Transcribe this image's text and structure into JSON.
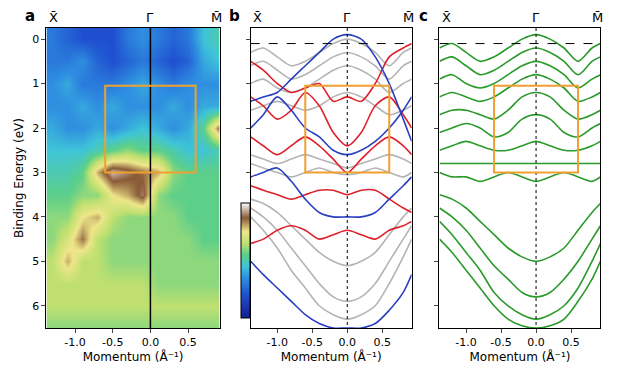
{
  "chart_data": [
    {
      "type": "heatmap",
      "panel": "a",
      "xlabel": "Momentum (Å⁻¹)",
      "ylabel": "Binding Energy (eV)",
      "xlim": [
        -1.38,
        0.92
      ],
      "ylim": [
        -0.25,
        6.5
      ],
      "xticks": [
        {
          "value": -1.0,
          "label": "-1.0"
        },
        -0.5,
        {
          "value": 0,
          "label": "0.0"
        },
        0.5
      ],
      "yticks": [
        0,
        1,
        2,
        3,
        4,
        5,
        6
      ],
      "symmetry_points": [
        {
          "value": -1.28,
          "label": "X̄"
        },
        {
          "value": 0,
          "label": "Γ̄"
        },
        {
          "value": 0.88,
          "label": "M̄"
        }
      ],
      "vlines": [
        0
      ],
      "box": {
        "x": [
          -0.6,
          0.6
        ],
        "y": [
          1.05,
          3.0
        ],
        "color": "#f0a030"
      },
      "zlim": [
        0,
        1
      ],
      "x": [
        -1.3,
        -1.1,
        -0.9,
        -0.7,
        -0.5,
        -0.3,
        -0.1,
        0.1,
        0.3,
        0.5,
        0.7,
        0.9
      ],
      "y": [
        0,
        0.5,
        1.0,
        1.5,
        2.0,
        2.5,
        3.0,
        3.5,
        4.0,
        4.5,
        5.0,
        5.5,
        6.0,
        6.5
      ],
      "z": [
        [
          0.3,
          0.25,
          0.2,
          0.2,
          0.2,
          0.3,
          0.35,
          0.3,
          0.25,
          0.3,
          0.45,
          0.5
        ],
        [
          0.3,
          0.3,
          0.35,
          0.25,
          0.2,
          0.25,
          0.3,
          0.25,
          0.2,
          0.25,
          0.4,
          0.45
        ],
        [
          0.35,
          0.4,
          0.3,
          0.3,
          0.3,
          0.35,
          0.4,
          0.35,
          0.3,
          0.35,
          0.35,
          0.35
        ],
        [
          0.35,
          0.35,
          0.4,
          0.35,
          0.4,
          0.35,
          0.35,
          0.35,
          0.4,
          0.35,
          0.4,
          0.4
        ],
        [
          0.4,
          0.35,
          0.35,
          0.4,
          0.35,
          0.4,
          0.45,
          0.4,
          0.35,
          0.4,
          0.55,
          0.85
        ],
        [
          0.45,
          0.45,
          0.45,
          0.5,
          0.55,
          0.6,
          0.55,
          0.55,
          0.5,
          0.45,
          0.45,
          0.5
        ],
        [
          0.5,
          0.5,
          0.55,
          0.8,
          0.95,
          0.9,
          0.85,
          0.8,
          0.6,
          0.55,
          0.55,
          0.55
        ],
        [
          0.55,
          0.55,
          0.6,
          0.6,
          0.75,
          0.8,
          0.9,
          0.6,
          0.55,
          0.55,
          0.55,
          0.55
        ],
        [
          0.6,
          0.6,
          0.75,
          0.8,
          0.65,
          0.6,
          0.6,
          0.6,
          0.6,
          0.55,
          0.55,
          0.55
        ],
        [
          0.6,
          0.7,
          0.85,
          0.65,
          0.6,
          0.6,
          0.6,
          0.6,
          0.6,
          0.6,
          0.55,
          0.55
        ],
        [
          0.65,
          0.8,
          0.65,
          0.65,
          0.6,
          0.6,
          0.6,
          0.6,
          0.6,
          0.6,
          0.6,
          0.6
        ],
        [
          0.65,
          0.65,
          0.65,
          0.65,
          0.65,
          0.65,
          0.65,
          0.6,
          0.6,
          0.6,
          0.6,
          0.6
        ],
        [
          0.65,
          0.65,
          0.65,
          0.65,
          0.65,
          0.65,
          0.65,
          0.65,
          0.65,
          0.65,
          0.65,
          0.65
        ],
        [
          0.6,
          0.6,
          0.6,
          0.6,
          0.6,
          0.6,
          0.6,
          0.6,
          0.6,
          0.6,
          0.6,
          0.6
        ]
      ]
    },
    {
      "type": "line",
      "panel": "b",
      "tick_labels": "x",
      "xlabel": "Momentum (Å⁻¹)",
      "xlim": [
        -1.38,
        0.92
      ],
      "ylim": [
        -0.25,
        6.5
      ],
      "xticks": [
        {
          "value": -1.0,
          "label": "-1.0"
        },
        -0.5,
        {
          "value": 0,
          "label": "0.0"
        },
        0.5
      ],
      "yticks": [
        0,
        1,
        2,
        3,
        4,
        5,
        6
      ],
      "symmetry_points": [
        {
          "value": -1.28,
          "label": "X̄"
        },
        {
          "value": 0,
          "label": "Γ̄"
        },
        {
          "value": 0.88,
          "label": "M̄"
        }
      ],
      "vlines": [
        0
      ],
      "hlines": [
        0.1
      ],
      "box": {
        "x": [
          -0.6,
          0.6
        ],
        "y": [
          1.05,
          3.0
        ],
        "color": "#f0a030"
      },
      "x": [
        -1.38,
        -1.2,
        -1.0,
        -0.8,
        -0.6,
        -0.4,
        -0.2,
        0,
        0.2,
        0.4,
        0.6,
        0.8,
        0.92
      ],
      "series": [
        {
          "color": "#b4b4b4",
          "values": [
            0.3,
            0.2,
            0.4,
            0.6,
            0.5,
            0.3,
            0.1,
            0.0,
            0.1,
            0.3,
            0.6,
            0.3,
            0.2
          ]
        },
        {
          "color": "#b4b4b4",
          "values": [
            0.6,
            0.5,
            0.7,
            0.9,
            0.8,
            0.6,
            0.4,
            0.3,
            0.4,
            0.6,
            0.9,
            0.6,
            0.5
          ]
        },
        {
          "color": "#b4b4b4",
          "values": [
            1.0,
            0.9,
            1.1,
            1.2,
            1.1,
            0.9,
            0.7,
            0.6,
            0.7,
            0.9,
            1.2,
            1.0,
            0.9
          ]
        },
        {
          "color": "#b4b4b4",
          "values": [
            1.6,
            1.5,
            1.4,
            1.5,
            1.6,
            1.5,
            1.3,
            1.2,
            1.3,
            1.5,
            1.7,
            1.6,
            1.5
          ]
        },
        {
          "color": "#b4b4b4",
          "values": [
            2.6,
            2.7,
            2.8,
            2.7,
            2.6,
            2.7,
            2.8,
            2.9,
            2.8,
            2.7,
            2.6,
            2.7,
            2.8
          ]
        },
        {
          "color": "#b4b4b4",
          "values": [
            2.8,
            2.9,
            3.0,
            3.1,
            3.0,
            2.9,
            3.0,
            3.05,
            3.0,
            2.9,
            3.0,
            3.1,
            3.0
          ]
        },
        {
          "color": "#b4b4b4",
          "values": [
            3.6,
            3.7,
            3.9,
            4.2,
            4.5,
            4.8,
            5.0,
            5.1,
            5.0,
            4.8,
            4.4,
            4.0,
            3.8
          ]
        },
        {
          "color": "#b4b4b4",
          "values": [
            3.8,
            4.0,
            4.3,
            4.7,
            5.1,
            5.5,
            5.8,
            5.9,
            5.8,
            5.5,
            5.0,
            4.5,
            4.2
          ]
        },
        {
          "color": "#b4b4b4",
          "values": [
            4.0,
            4.3,
            4.7,
            5.2,
            5.6,
            6.0,
            6.2,
            6.3,
            6.2,
            6.0,
            5.5,
            4.9,
            4.5
          ]
        },
        {
          "color": "#e0202a",
          "values": [
            0.5,
            0.7,
            1.0,
            1.2,
            1.1,
            1.0,
            1.4,
            1.3,
            1.4,
            1.0,
            0.4,
            0.2,
            0.1
          ]
        },
        {
          "color": "#e0202a",
          "values": [
            1.3,
            1.5,
            1.8,
            1.6,
            1.2,
            1.5,
            2.1,
            2.4,
            2.1,
            1.5,
            1.3,
            1.7,
            2.0
          ]
        },
        {
          "color": "#e0202a",
          "values": [
            2.2,
            2.4,
            2.6,
            2.4,
            2.2,
            2.4,
            2.7,
            3.0,
            2.7,
            2.4,
            2.2,
            2.4,
            2.6
          ]
        },
        {
          "color": "#e0202a",
          "values": [
            3.3,
            3.4,
            3.5,
            3.6,
            3.5,
            3.4,
            3.4,
            3.5,
            3.4,
            3.4,
            3.6,
            3.8,
            3.9
          ]
        },
        {
          "color": "#e0202a",
          "values": [
            4.6,
            4.5,
            4.3,
            4.2,
            4.3,
            4.5,
            4.4,
            4.3,
            4.4,
            4.5,
            4.3,
            4.2,
            4.1
          ]
        },
        {
          "color": "#2a40c0",
          "values": [
            1.4,
            1.3,
            1.2,
            0.9,
            0.6,
            0.3,
            0.0,
            -0.1,
            0.0,
            0.4,
            1.0,
            1.8,
            2.3
          ]
        },
        {
          "color": "#2a40c0",
          "values": [
            2.0,
            1.7,
            1.3,
            1.6,
            2.0,
            2.2,
            2.5,
            2.6,
            2.5,
            2.3,
            2.0,
            1.6,
            1.3
          ]
        },
        {
          "color": "#2a40c0",
          "values": [
            3.1,
            3.0,
            2.9,
            3.2,
            3.6,
            3.9,
            4.0,
            4.0,
            4.0,
            3.9,
            3.6,
            3.3,
            3.1
          ]
        },
        {
          "color": "#2a40c0",
          "values": [
            5.0,
            5.3,
            5.6,
            5.9,
            6.2,
            6.4,
            6.5,
            6.5,
            6.5,
            6.4,
            6.1,
            5.7,
            5.3
          ]
        }
      ]
    },
    {
      "type": "line",
      "panel": "c",
      "tick_labels": "x",
      "xlabel": "Momentum (Å⁻¹)",
      "xlim": [
        -1.38,
        0.92
      ],
      "ylim": [
        -0.25,
        6.5
      ],
      "xticks": [
        {
          "value": -1.0,
          "label": "-1.0"
        },
        -0.5,
        {
          "value": 0,
          "label": "0.0"
        },
        0.5
      ],
      "yticks": [
        0,
        1,
        2,
        3,
        4,
        5,
        6
      ],
      "symmetry_points": [
        {
          "value": -1.28,
          "label": "X̄"
        },
        {
          "value": 0,
          "label": "Γ̄"
        },
        {
          "value": 0.88,
          "label": "M̄"
        }
      ],
      "vlines": [
        0
      ],
      "hlines": [
        0.1
      ],
      "box": {
        "x": [
          -0.6,
          0.6
        ],
        "y": [
          1.05,
          3.0
        ],
        "color": "#f0a030"
      },
      "x": [
        -1.38,
        -1.2,
        -1.0,
        -0.8,
        -0.6,
        -0.4,
        -0.2,
        0,
        0.2,
        0.4,
        0.6,
        0.8,
        0.92
      ],
      "series": [
        {
          "color": "#2a9a2a",
          "values": [
            0.2,
            0.1,
            0.3,
            0.5,
            0.4,
            0.2,
            0.0,
            -0.1,
            0.0,
            0.2,
            0.5,
            0.2,
            0.1
          ]
        },
        {
          "color": "#2a9a2a",
          "values": [
            0.5,
            0.4,
            0.6,
            0.8,
            0.7,
            0.5,
            0.3,
            0.2,
            0.3,
            0.5,
            0.8,
            0.5,
            0.4
          ]
        },
        {
          "color": "#2a9a2a",
          "values": [
            0.9,
            0.8,
            1.0,
            1.1,
            1.0,
            0.8,
            0.6,
            0.5,
            0.6,
            0.8,
            1.1,
            0.9,
            0.8
          ]
        },
        {
          "color": "#2a9a2a",
          "values": [
            1.3,
            1.2,
            1.3,
            1.4,
            1.3,
            1.1,
            0.9,
            0.8,
            0.9,
            1.1,
            1.4,
            1.3,
            1.2
          ]
        },
        {
          "color": "#2a9a2a",
          "values": [
            1.7,
            1.6,
            1.6,
            1.7,
            1.8,
            1.6,
            1.3,
            1.2,
            1.3,
            1.6,
            1.8,
            1.7,
            1.6
          ]
        },
        {
          "color": "#2a9a2a",
          "values": [
            2.1,
            2.0,
            1.9,
            2.0,
            2.2,
            2.1,
            1.8,
            1.7,
            1.8,
            2.1,
            2.2,
            2.0,
            1.9
          ]
        },
        {
          "color": "#2a9a2a",
          "values": [
            2.5,
            2.4,
            2.3,
            2.4,
            2.5,
            2.5,
            2.4,
            2.3,
            2.4,
            2.5,
            2.5,
            2.4,
            2.3
          ]
        },
        {
          "color": "#2a9a2a",
          "values": [
            2.8,
            2.8,
            2.8,
            2.8,
            2.8,
            2.8,
            2.8,
            2.8,
            2.8,
            2.8,
            2.8,
            2.8,
            2.8
          ]
        },
        {
          "color": "#2a9a2a",
          "values": [
            3.0,
            3.1,
            3.1,
            3.2,
            3.1,
            3.0,
            3.1,
            3.2,
            3.1,
            3.0,
            3.1,
            3.2,
            3.1
          ]
        },
        {
          "color": "#2a9a2a",
          "values": [
            3.5,
            3.6,
            3.8,
            4.1,
            4.4,
            4.7,
            4.9,
            5.0,
            4.9,
            4.7,
            4.3,
            3.9,
            3.7
          ]
        },
        {
          "color": "#2a9a2a",
          "values": [
            3.8,
            4.0,
            4.3,
            4.7,
            5.1,
            5.4,
            5.7,
            5.8,
            5.7,
            5.4,
            5.0,
            4.5,
            4.2
          ]
        },
        {
          "color": "#2a9a2a",
          "values": [
            4.1,
            4.4,
            4.8,
            5.2,
            5.7,
            6.0,
            6.2,
            6.3,
            6.2,
            6.0,
            5.6,
            5.0,
            4.6
          ]
        },
        {
          "color": "#2a9a2a",
          "values": [
            4.5,
            4.8,
            5.2,
            5.6,
            6.0,
            6.3,
            6.45,
            6.5,
            6.45,
            6.3,
            5.9,
            5.4,
            5.0
          ]
        }
      ]
    }
  ]
}
